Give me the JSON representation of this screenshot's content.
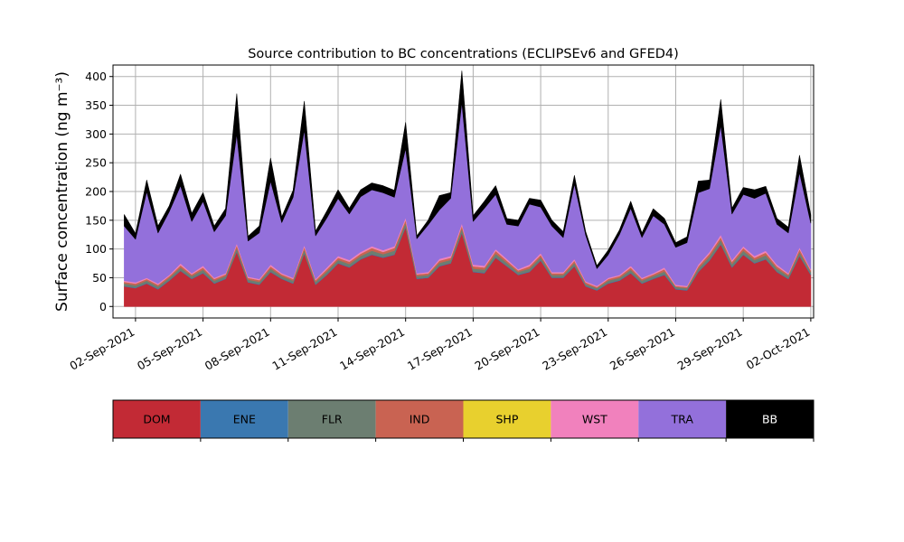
{
  "chart_data": {
    "type": "area",
    "stacked": true,
    "title": "Source contribution to BC concentrations (ECLIPSEv6 and GFED4)",
    "ylabel": "Surface concentration (ng m⁻³)",
    "ylim": [
      -20,
      420
    ],
    "yticks": [
      0,
      50,
      100,
      150,
      200,
      250,
      300,
      350,
      400
    ],
    "xlim": [
      "2021-09-01 00:00",
      "2021-10-02 03:00"
    ],
    "xtick_labels": [
      "02-Sep-2021",
      "05-Sep-2021",
      "08-Sep-2021",
      "11-Sep-2021",
      "14-Sep-2021",
      "17-Sep-2021",
      "20-Sep-2021",
      "23-Sep-2021",
      "26-Sep-2021",
      "29-Sep-2021",
      "02-Oct-2021"
    ],
    "grid": true,
    "x": [
      "2021-09-01 12:00",
      "2021-09-02 00:00",
      "2021-09-02 12:00",
      "2021-09-03 00:00",
      "2021-09-03 12:00",
      "2021-09-04 00:00",
      "2021-09-04 12:00",
      "2021-09-05 00:00",
      "2021-09-05 12:00",
      "2021-09-06 00:00",
      "2021-09-06 12:00",
      "2021-09-07 00:00",
      "2021-09-07 12:00",
      "2021-09-08 00:00",
      "2021-09-08 12:00",
      "2021-09-09 00:00",
      "2021-09-09 12:00",
      "2021-09-10 00:00",
      "2021-09-10 12:00",
      "2021-09-11 00:00",
      "2021-09-11 12:00",
      "2021-09-12 00:00",
      "2021-09-12 12:00",
      "2021-09-13 00:00",
      "2021-09-13 12:00",
      "2021-09-14 00:00",
      "2021-09-14 12:00",
      "2021-09-15 00:00",
      "2021-09-15 12:00",
      "2021-09-16 00:00",
      "2021-09-16 12:00",
      "2021-09-17 00:00",
      "2021-09-17 12:00",
      "2021-09-18 00:00",
      "2021-09-18 12:00",
      "2021-09-19 00:00",
      "2021-09-19 12:00",
      "2021-09-20 00:00",
      "2021-09-20 12:00",
      "2021-09-21 00:00",
      "2021-09-21 12:00",
      "2021-09-22 00:00",
      "2021-09-22 12:00",
      "2021-09-23 00:00",
      "2021-09-23 12:00",
      "2021-09-24 00:00",
      "2021-09-24 12:00",
      "2021-09-25 00:00",
      "2021-09-25 12:00",
      "2021-09-26 00:00",
      "2021-09-26 12:00",
      "2021-09-27 00:00",
      "2021-09-27 12:00",
      "2021-09-28 00:00",
      "2021-09-28 12:00",
      "2021-09-29 00:00",
      "2021-09-29 12:00",
      "2021-09-30 00:00",
      "2021-09-30 12:00",
      "2021-10-01 00:00",
      "2021-10-01 12:00",
      "2021-10-02 00:00"
    ],
    "series": [
      {
        "name": "DOM",
        "color": "#c22a35",
        "values": [
          35,
          32,
          40,
          30,
          45,
          62,
          48,
          58,
          40,
          48,
          95,
          42,
          38,
          60,
          48,
          40,
          92,
          38,
          55,
          75,
          68,
          82,
          90,
          85,
          90,
          138,
          48,
          50,
          70,
          75,
          128,
          60,
          58,
          85,
          70,
          55,
          60,
          80,
          50,
          50,
          70,
          35,
          28,
          40,
          45,
          58,
          40,
          48,
          55,
          30,
          28,
          60,
          80,
          108,
          68,
          90,
          75,
          82,
          60,
          48,
          88,
          55
        ]
      },
      {
        "name": "ENE",
        "color": "#3a78b0",
        "values": [
          1,
          1,
          1,
          1,
          1,
          1,
          1,
          1,
          1,
          1,
          1,
          1,
          1,
          1,
          1,
          1,
          1,
          1,
          1,
          1,
          1,
          1,
          1,
          1,
          1,
          1,
          1,
          1,
          1,
          1,
          1,
          1,
          1,
          1,
          1,
          1,
          1,
          1,
          1,
          1,
          1,
          1,
          1,
          1,
          1,
          1,
          1,
          1,
          1,
          1,
          1,
          1,
          1,
          1,
          1,
          1,
          1,
          1,
          1,
          1,
          1,
          1
        ]
      },
      {
        "name": "FLR",
        "color": "#6c7e71",
        "values": [
          4,
          4,
          4,
          4,
          4,
          5,
          4,
          5,
          4,
          4,
          6,
          4,
          4,
          5,
          4,
          4,
          6,
          4,
          5,
          5,
          5,
          5,
          6,
          5,
          6,
          7,
          4,
          4,
          5,
          5,
          7,
          5,
          5,
          6,
          5,
          4,
          5,
          5,
          4,
          4,
          5,
          3,
          3,
          4,
          4,
          5,
          4,
          4,
          5,
          3,
          3,
          5,
          6,
          7,
          5,
          6,
          5,
          6,
          5,
          4,
          6,
          4
        ]
      },
      {
        "name": "IND",
        "color": "#c96352",
        "values": [
          3,
          3,
          3,
          3,
          3,
          4,
          3,
          4,
          3,
          3,
          5,
          3,
          3,
          4,
          3,
          3,
          5,
          3,
          4,
          4,
          4,
          4,
          5,
          4,
          5,
          5,
          3,
          3,
          4,
          4,
          5,
          4,
          4,
          5,
          4,
          3,
          4,
          4,
          3,
          3,
          4,
          3,
          2,
          3,
          3,
          4,
          3,
          3,
          4,
          2,
          2,
          4,
          5,
          5,
          4,
          5,
          4,
          5,
          4,
          3,
          5,
          3
        ]
      },
      {
        "name": "SHP",
        "color": "#e8d02e",
        "values": [
          0,
          0,
          0,
          0,
          0,
          0,
          0,
          0,
          0,
          0,
          0,
          0,
          0,
          0,
          0,
          0,
          0,
          0,
          0,
          0,
          0,
          0,
          0,
          0,
          0,
          0,
          0,
          0,
          0,
          0,
          0,
          0,
          0,
          0,
          0,
          0,
          0,
          0,
          0,
          0,
          0,
          0,
          0,
          0,
          0,
          0,
          0,
          0,
          0,
          0,
          0,
          0,
          0,
          0,
          0,
          0,
          0,
          0,
          0,
          0,
          0,
          0
        ]
      },
      {
        "name": "WST",
        "color": "#f181bd",
        "values": [
          2,
          2,
          2,
          2,
          2,
          3,
          2,
          3,
          2,
          2,
          3,
          2,
          2,
          3,
          2,
          2,
          3,
          2,
          3,
          3,
          3,
          3,
          3,
          3,
          3,
          4,
          2,
          2,
          3,
          3,
          4,
          3,
          3,
          3,
          3,
          2,
          3,
          3,
          2,
          2,
          3,
          2,
          2,
          2,
          2,
          3,
          2,
          2,
          3,
          2,
          2,
          3,
          3,
          4,
          3,
          3,
          3,
          3,
          3,
          2,
          3,
          2
        ]
      },
      {
        "name": "TRA",
        "color": "#9370db",
        "values": [
          95,
          75,
          150,
          88,
          110,
          135,
          90,
          112,
          80,
          100,
          190,
          62,
          80,
          145,
          88,
          140,
          200,
          75,
          86,
          100,
          80,
          96,
          98,
          100,
          85,
          120,
          60,
          82,
          85,
          100,
          210,
          75,
          100,
          95,
          60,
          75,
          105,
          80,
          80,
          60,
          130,
          80,
          30,
          40,
          70,
          100,
          70,
          100,
          75,
          65,
          75,
          125,
          110,
          190,
          80,
          90,
          100,
          100,
          70,
          70,
          130,
          80
        ]
      },
      {
        "name": "BB",
        "color": "#000000",
        "values": [
          20,
          10,
          20,
          12,
          10,
          20,
          14,
          15,
          10,
          12,
          70,
          8,
          12,
          40,
          10,
          12,
          50,
          8,
          12,
          15,
          10,
          12,
          12,
          12,
          12,
          45,
          5,
          8,
          25,
          10,
          55,
          10,
          12,
          15,
          10,
          10,
          10,
          12,
          10,
          10,
          15,
          6,
          5,
          8,
          8,
          12,
          8,
          12,
          10,
          8,
          10,
          20,
          15,
          45,
          10,
          12,
          15,
          12,
          10,
          10,
          30,
          14
        ]
      }
    ],
    "legend": {
      "placement": "colorbar-below",
      "labels": [
        "DOM",
        "ENE",
        "FLR",
        "IND",
        "SHP",
        "WST",
        "TRA",
        "BB"
      ]
    }
  }
}
